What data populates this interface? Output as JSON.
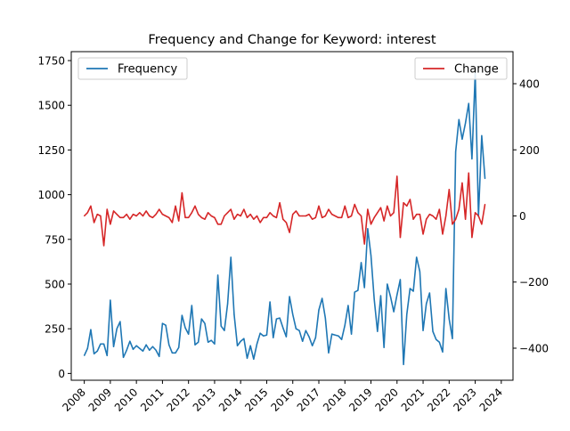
{
  "chart_data": {
    "type": "line",
    "title": "Frequency and Change for Keyword: interest",
    "xlabel": "",
    "ylabel_left": "",
    "ylabel_right": "",
    "x_ticks": [
      "2008",
      "2009",
      "2010",
      "2011",
      "2012",
      "2013",
      "2014",
      "2015",
      "2016",
      "2017",
      "2018",
      "2019",
      "2020",
      "2021",
      "2022",
      "2023",
      "2024"
    ],
    "y_left_ticks": [
      0,
      250,
      500,
      750,
      1000,
      1250,
      1500,
      1750
    ],
    "y_left_lim": [
      -38,
      1800
    ],
    "y_right_ticks": [
      -400,
      -200,
      0,
      200,
      400
    ],
    "y_right_lim": [
      -497,
      497
    ],
    "grid": false,
    "legends": [
      {
        "axis": "left",
        "placement": "top-left",
        "entries": [
          "Frequency"
        ]
      },
      {
        "axis": "right",
        "placement": "top-right",
        "entries": [
          "Change"
        ]
      }
    ],
    "series": [
      {
        "name": "Frequency",
        "axis": "left",
        "color": "#1f77b4",
        "x_start": "2008-01",
        "x_step": "month",
        "values": [
          100,
          140,
          245,
          110,
          125,
          165,
          165,
          100,
          410,
          150,
          250,
          290,
          90,
          130,
          180,
          135,
          155,
          140,
          125,
          160,
          130,
          150,
          130,
          95,
          280,
          270,
          160,
          115,
          115,
          145,
          325,
          255,
          220,
          380,
          160,
          175,
          305,
          280,
          175,
          185,
          165,
          550,
          265,
          240,
          390,
          650,
          330,
          155,
          180,
          195,
          85,
          155,
          80,
          165,
          225,
          210,
          215,
          400,
          200,
          305,
          310,
          255,
          205,
          430,
          330,
          250,
          240,
          180,
          240,
          205,
          155,
          200,
          355,
          420,
          310,
          115,
          220,
          215,
          210,
          190,
          270,
          380,
          220,
          455,
          465,
          620,
          480,
          810,
          660,
          415,
          235,
          435,
          145,
          500,
          430,
          345,
          440,
          525,
          50,
          330,
          475,
          460,
          650,
          570,
          240,
          390,
          450,
          235,
          190,
          175,
          120,
          475,
          305,
          195,
          1240,
          1420,
          1310,
          1400,
          1510,
          1200,
          1680,
          880,
          1330,
          1090
        ],
        "points": 124
      },
      {
        "name": "Change",
        "axis": "right",
        "color": "#d62728",
        "x_start": "2008-01",
        "x_step": "month",
        "values": [
          0,
          10,
          30,
          -20,
          5,
          0,
          -90,
          20,
          -25,
          15,
          5,
          -5,
          -5,
          5,
          -10,
          5,
          0,
          10,
          0,
          15,
          0,
          -5,
          5,
          20,
          5,
          0,
          -5,
          -20,
          30,
          -15,
          70,
          -5,
          -5,
          10,
          30,
          5,
          -5,
          -10,
          10,
          0,
          -5,
          -25,
          -25,
          0,
          10,
          20,
          -10,
          5,
          0,
          20,
          -5,
          5,
          -10,
          0,
          -20,
          -5,
          -5,
          10,
          0,
          -5,
          40,
          -10,
          -20,
          -50,
          5,
          15,
          0,
          0,
          0,
          5,
          -10,
          -5,
          30,
          -5,
          0,
          20,
          5,
          0,
          -5,
          -5,
          30,
          -5,
          0,
          35,
          10,
          0,
          -85,
          20,
          -25,
          -5,
          10,
          25,
          -15,
          30,
          0,
          10,
          120,
          -65,
          40,
          30,
          50,
          -10,
          5,
          5,
          -55,
          -10,
          5,
          0,
          -10,
          20,
          -55,
          0,
          80,
          -25,
          -10,
          20,
          100,
          -10,
          130,
          -65,
          10,
          0,
          -25,
          35
        ],
        "points": 124
      }
    ]
  }
}
